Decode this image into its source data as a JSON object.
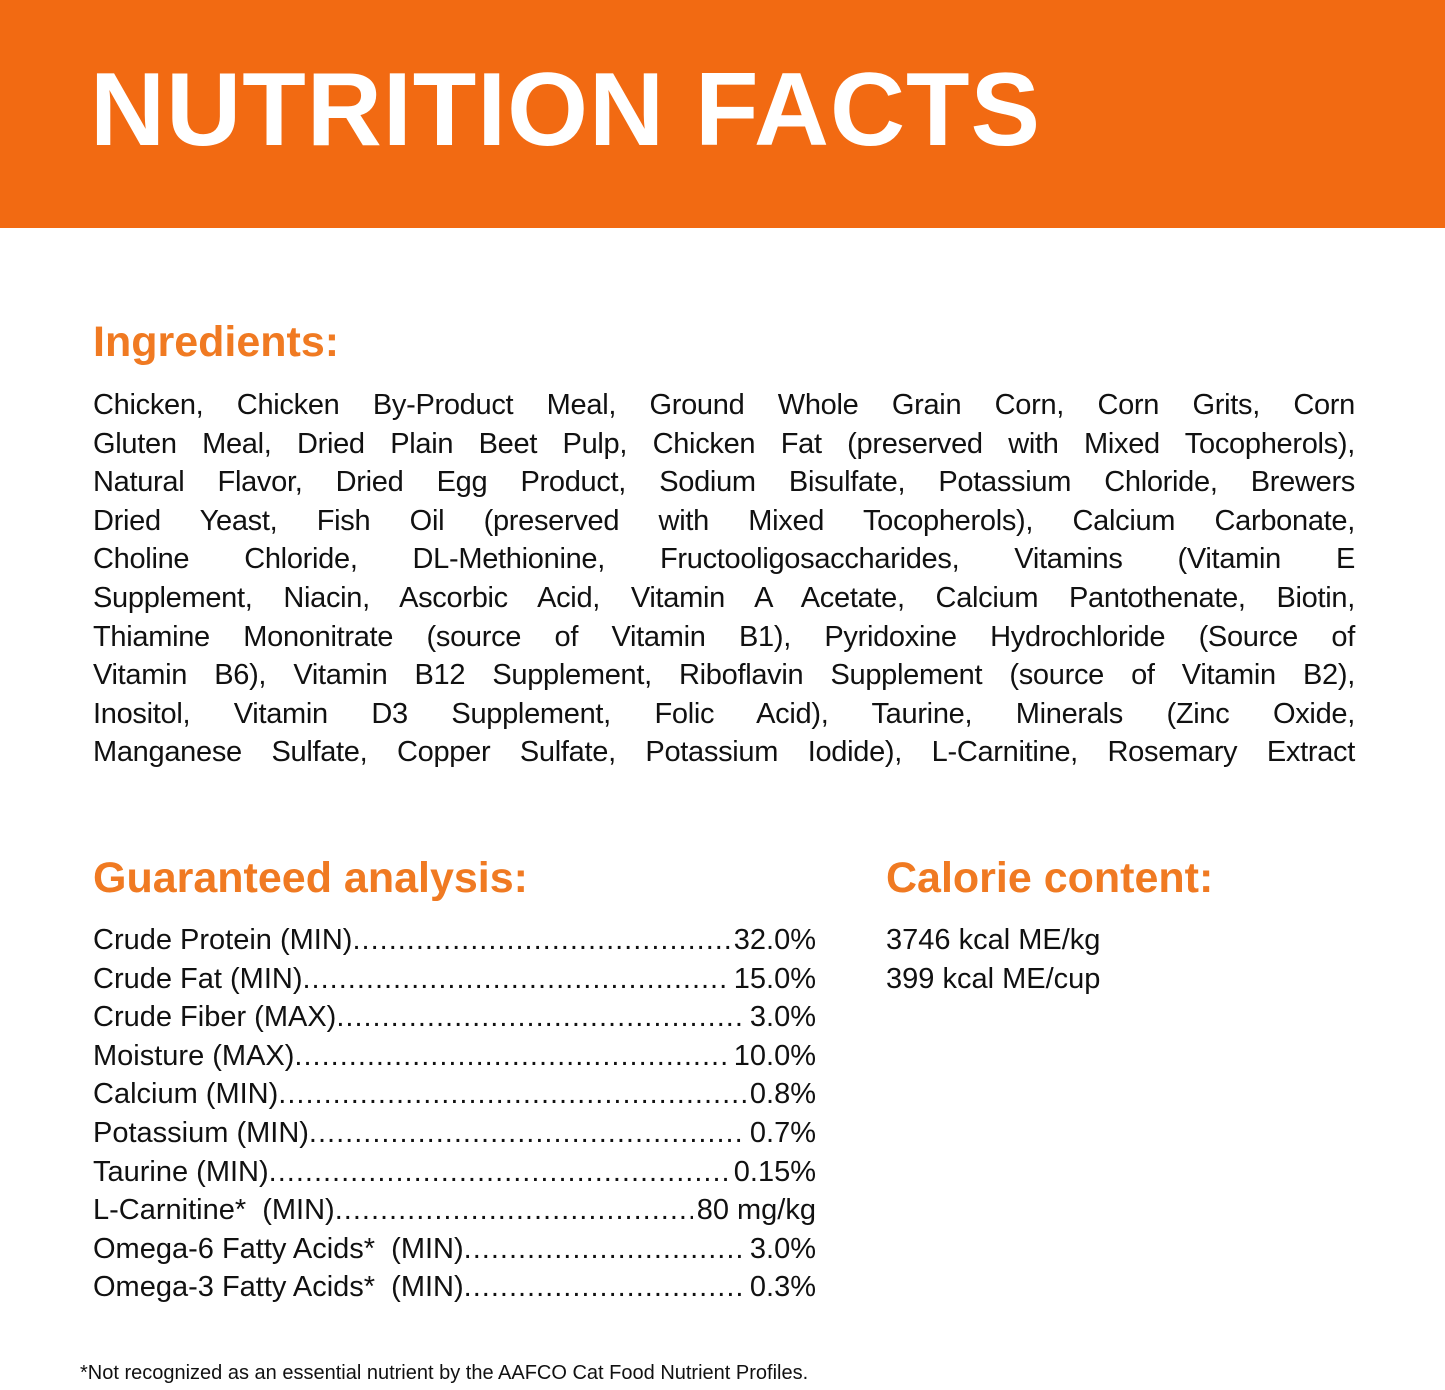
{
  "header": {
    "title": "NUTRITION FACTS",
    "color": "#F26A12"
  },
  "accent_color": "#F07A22",
  "ingredients": {
    "heading": "Ingredients:",
    "lines": [
      "Chicken, Chicken By-Product Meal, Ground Whole Grain Corn, Corn Grits, Corn",
      "Gluten Meal, Dried Plain Beet Pulp, Chicken Fat (preserved with Mixed Tocopherols),",
      "Natural Flavor, Dried Egg Product, Sodium Bisulfate, Potassium Chloride, Brewers",
      "Dried Yeast, Fish Oil (preserved with Mixed Tocopherols), Calcium Carbonate,",
      "Choline Chloride, DL-Methionine, Fructooligosaccharides, Vitamins (Vitamin E",
      "Supplement, Niacin, Ascorbic Acid, Vitamin A Acetate, Calcium Pantothenate, Biotin,",
      "Thiamine Mononitrate (source of Vitamin B1), Pyridoxine Hydrochloride (Source of",
      "Vitamin B6), Vitamin B12 Supplement, Riboflavin Supplement (source of Vitamin B2),",
      "Inositol, Vitamin D3 Supplement, Folic Acid), Taurine, Minerals (Zinc Oxide,",
      "Manganese Sulfate, Copper Sulfate, Potassium Iodide), L-Carnitine, Rosemary Extract"
    ]
  },
  "guaranteed_analysis": {
    "heading": "Guaranteed analysis:",
    "rows": [
      {
        "label": "Crude Protein (MIN)",
        "value": "32.0%"
      },
      {
        "label": "Crude Fat (MIN)",
        "value": "15.0%"
      },
      {
        "label": "Crude Fiber (MAX)",
        "value": "3.0%"
      },
      {
        "label": "Moisture (MAX)",
        "value": "10.0%"
      },
      {
        "label": "Calcium (MIN)",
        "value": "0.8%"
      },
      {
        "label": "Potassium (MIN)",
        "value": "0.7%"
      },
      {
        "label": "Taurine (MIN)",
        "value": "0.15%"
      },
      {
        "label": "L-Carnitine*  (MIN)",
        "value": "80 mg/kg"
      },
      {
        "label": "Omega-6 Fatty Acids*  (MIN)",
        "value": "3.0%"
      },
      {
        "label": "Omega-3 Fatty Acids*  (MIN)",
        "value": "0.3%"
      }
    ]
  },
  "calorie_content": {
    "heading": "Calorie content:",
    "lines": [
      "3746 kcal ME/kg",
      "399 kcal ME/cup"
    ]
  },
  "footnote": "*Not recognized as an essential nutrient by the AAFCO Cat Food Nutrient Profiles."
}
